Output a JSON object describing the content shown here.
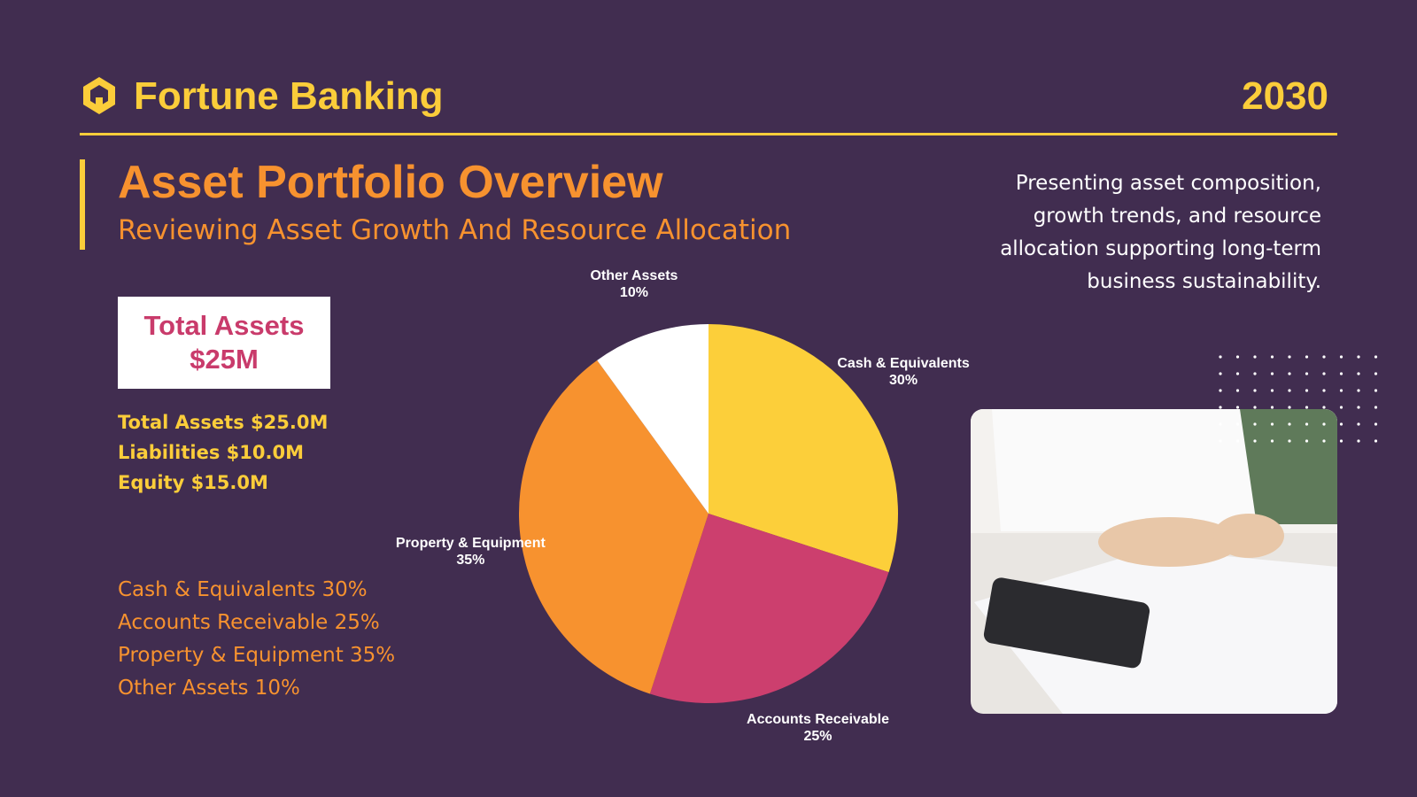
{
  "header": {
    "brand": "Fortune Banking",
    "year": "2030"
  },
  "title": "Asset Portfolio Overview",
  "subtitle": "Reviewing Asset Growth And Resource Allocation",
  "description": "Presenting asset composition, growth trends, and resource allocation supporting long-term business sustainability.",
  "total_box": {
    "label": "Total Assets",
    "value": "$25M"
  },
  "summary": [
    "Total Assets $25.0M",
    "Liabilities $10.0M",
    "Equity $15.0M"
  ],
  "breakdown": [
    "Cash & Equivalents 30%",
    "Accounts Receivable 25%",
    "Property & Equipment 35%",
    "Other Assets 10%"
  ],
  "chart_data": {
    "type": "pie",
    "categories": [
      "Cash & Equivalents",
      "Accounts Receivable",
      "Property & Equipment",
      "Other Assets"
    ],
    "values": [
      30,
      25,
      35,
      10
    ],
    "value_labels": [
      "30%",
      "25%",
      "35%",
      "10%"
    ],
    "colors": [
      "#fccf3a",
      "#cc3f6e",
      "#f7922f",
      "#ffffff"
    ]
  }
}
